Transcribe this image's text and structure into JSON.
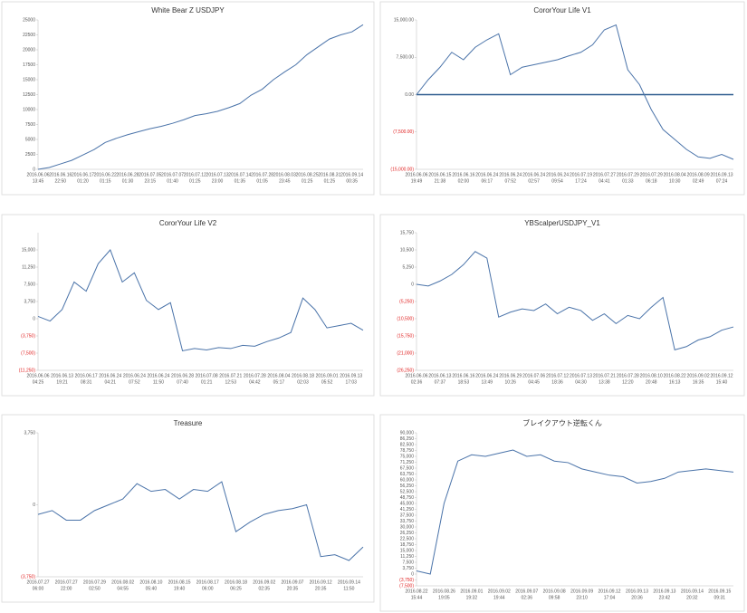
{
  "chart_data": [
    {
      "type": "line",
      "title": "White Bear Z USDJPY",
      "color": "#4a73a9",
      "categories": [
        "2016.06.06",
        null,
        "2016.06.16",
        null,
        "2016.06.17",
        null,
        "2016.06.22",
        null,
        "2016.06.28",
        null,
        "2016.07.05",
        null,
        "2016.07.07",
        null,
        "2016.07.12",
        null,
        "2016.07.13",
        null,
        "2016.07.14",
        null,
        "2016.07.28",
        null,
        "2016.08.03",
        null,
        "2016.08.25",
        null,
        "2016.08.31",
        null,
        "2016.09.14",
        null
      ],
      "times": [
        "13:45",
        null,
        "22:50",
        null,
        "01:20",
        null,
        "01:15",
        null,
        "01:30",
        null,
        "23:15",
        null,
        "01:40",
        null,
        "01:25",
        null,
        "23:00",
        null,
        "01:35",
        null,
        "01:05",
        null,
        "23:45",
        null,
        "01:25",
        null,
        "01:25",
        null,
        "00:35",
        null
      ],
      "values": [
        0,
        300,
        900,
        1500,
        2400,
        3300,
        4500,
        5200,
        5800,
        6300,
        6800,
        7200,
        7700,
        8300,
        9000,
        9300,
        9700,
        10300,
        11000,
        12400,
        13400,
        15000,
        16300,
        17500,
        19200,
        20500,
        21800,
        22500,
        23000,
        24200
      ],
      "ylim": [
        0,
        25000
      ],
      "yticks": [
        0,
        2500,
        5000,
        7500,
        10000,
        12500,
        15000,
        17500,
        20000,
        22500,
        25000
      ]
    },
    {
      "type": "line",
      "title": "CororYour Life V1",
      "color": "#4a73a9",
      "zero_line": true,
      "categories": [
        "2016.06.06",
        null,
        "2016.06.15",
        null,
        "2016.06.16",
        null,
        "2016.06.24",
        null,
        "2016.06.24",
        null,
        "2016.06.24",
        null,
        "2016.06.24",
        null,
        "2016.07.19",
        null,
        "2016.07.27",
        null,
        "2016.07.29",
        null,
        "2016.07.29",
        null,
        "2016.08.04",
        null,
        "2016.08.09",
        null,
        "2016.09.13",
        null
      ],
      "times": [
        "19:49",
        null,
        "21:38",
        null,
        "02:00",
        null,
        "06:17",
        null,
        "07:52",
        null,
        "02:57",
        null,
        "09:54",
        null,
        "17:24",
        null,
        "04:41",
        null,
        "01:33",
        null,
        "06:18",
        null,
        "10:30",
        null,
        "02:49",
        null,
        "07:24",
        null
      ],
      "values": [
        0,
        3000,
        5500,
        8500,
        7000,
        9500,
        11000,
        12213,
        4000,
        5500,
        6000,
        6500,
        7000,
        7800,
        8500,
        10000,
        13000,
        14000,
        5000,
        2000,
        -3000,
        -7000,
        -9000,
        -11000,
        -12500,
        -12800,
        -12000,
        -13000
      ],
      "ylim": [
        -15000,
        15000
      ],
      "yticks": [
        {
          "value": 15000,
          "label": "15,000.00"
        },
        {
          "value": 7500,
          "label": "7,500.00"
        },
        {
          "value": 0,
          "label": "0.00"
        },
        {
          "value": -7500,
          "label": "(7,500.00)"
        },
        {
          "value": -15000,
          "label": "(15,000.00)"
        }
      ]
    },
    {
      "type": "line",
      "title": "CororYour Life V2",
      "color": "#4a73a9",
      "categories": [
        "2016.06.06",
        null,
        "2016.06.13",
        null,
        "2016.06.17",
        null,
        "2016.06.24",
        null,
        "2016.06.24",
        null,
        "2016.06.24",
        null,
        "2016.06.28",
        null,
        "2016.07.08",
        null,
        "2016.07.21",
        null,
        "2016.07.28",
        null,
        "2016.08.04",
        null,
        "2016.08.18",
        null,
        "2016.09.01",
        null,
        "2016.09.13",
        null
      ],
      "times": [
        "04:25",
        null,
        "19:21",
        null,
        "08:31",
        null,
        "04:21",
        null,
        "07:52",
        null,
        "11:50",
        null,
        "07:40",
        null,
        "01:21",
        null,
        "12:53",
        null,
        "04:42",
        null,
        "05:17",
        null,
        "02:03",
        null,
        "05:52",
        null,
        "17:03",
        null
      ],
      "values": [
        500,
        -500,
        2000,
        8000,
        6000,
        12000,
        15000,
        8000,
        10000,
        4000,
        2000,
        3500,
        -7000,
        -6500,
        -6800,
        -6300,
        -6500,
        -5800,
        -6000,
        -5000,
        -4200,
        -3000,
        4500,
        2000,
        -2000,
        -1500,
        -1000,
        -2500
      ],
      "ylim": [
        -11250,
        18750
      ],
      "yticks": [
        {
          "value": 15000,
          "label": "15,000"
        },
        {
          "value": 11250,
          "label": "11,250"
        },
        {
          "value": 7500,
          "label": "7,500"
        },
        {
          "value": 3750,
          "label": "3,750"
        },
        0,
        {
          "value": -3750,
          "label": "(3,750)"
        },
        {
          "value": -7500,
          "label": "(7,500)"
        },
        {
          "value": -11250,
          "label": "(11,250)"
        }
      ]
    },
    {
      "type": "line",
      "title": "YBScalperUSDJPY_V1",
      "color": "#4a73a9",
      "categories": [
        "2016.06.06",
        null,
        "2016.06.13",
        null,
        "2016.06.16",
        null,
        "2016.06.24",
        null,
        "2016.06.29",
        null,
        "2016.07.06",
        null,
        "2016.07.12",
        null,
        "2016.07.13",
        null,
        "2016.07.21",
        null,
        "2016.07.28",
        null,
        "2016.08.10",
        null,
        "2016.08.22",
        null,
        "2016.09.02",
        null,
        "2016.09.12",
        null
      ],
      "times": [
        "02:36",
        null,
        "07:37",
        null,
        "18:53",
        null,
        "13:49",
        null,
        "10:26",
        null,
        "04:45",
        null,
        "18:36",
        null,
        "04:30",
        null,
        "13:38",
        null,
        "12:20",
        null,
        "20:48",
        null,
        "16:13",
        null,
        "16:35",
        null,
        "15:40",
        null
      ],
      "values": [
        0,
        -500,
        1000,
        3000,
        6000,
        10000,
        8000,
        -10000,
        -8500,
        -7500,
        -8000,
        -6000,
        -9000,
        -7000,
        -8000,
        -11000,
        -9000,
        -12000,
        -9500,
        -10500,
        -7000,
        -4000,
        -20000,
        -19000,
        -17000,
        -16000,
        -14000,
        -13000
      ],
      "ylim": [
        -26250,
        15750
      ],
      "yticks": [
        {
          "value": 15750,
          "label": "15,750"
        },
        {
          "value": 10500,
          "label": "10,500"
        },
        {
          "value": 5250,
          "label": "5,250"
        },
        0,
        {
          "value": -5250,
          "label": "(5,250)"
        },
        {
          "value": -10500,
          "label": "(10,500)"
        },
        {
          "value": -15750,
          "label": "(15,750)"
        },
        {
          "value": -21000,
          "label": "(21,000)"
        },
        {
          "value": -26250,
          "label": "(26,250)"
        }
      ]
    },
    {
      "type": "line",
      "title": "Treasure",
      "color": "#4a73a9",
      "categories": [
        "2016.07.27",
        null,
        "2016.07.27",
        null,
        "2016.07.29",
        null,
        "2016.08.02",
        null,
        "2016.08.10",
        null,
        "2016.08.15",
        null,
        "2016.08.17",
        null,
        "2016.08.18",
        null,
        "2016.09.02",
        null,
        "2016.09.07",
        null,
        "2016.09.12",
        null,
        "2016.09.14",
        null
      ],
      "times": [
        "06:00",
        null,
        "22:00",
        null,
        "02:50",
        null,
        "04:55",
        null,
        "05:40",
        null,
        "19:40",
        null,
        "06:00",
        null,
        "06:25",
        null,
        "02:35",
        null,
        "20:35",
        null,
        "20:35",
        null,
        "11:50",
        null
      ],
      "values": [
        -500,
        -300,
        -800,
        -800,
        -300,
        0,
        300,
        1100,
        700,
        800,
        300,
        800,
        700,
        1200,
        -1400,
        -900,
        -500,
        -300,
        -200,
        0,
        -2700,
        -2600,
        -2900,
        -2200
      ],
      "ylim": [
        -3750,
        3750
      ],
      "yticks": [
        {
          "value": 3750,
          "label": "3,750"
        },
        0,
        {
          "value": -3750,
          "label": "(3,750)"
        }
      ]
    },
    {
      "type": "line",
      "title": "ブレイクアウト逆転くん",
      "color": "#4a73a9",
      "categories": [
        "2016.08.22",
        null,
        "2016.08.26",
        null,
        "2016.09.01",
        null,
        "2016.09.02",
        null,
        "2016.09.07",
        null,
        "2016.09.08",
        null,
        "2016.09.09",
        null,
        "2016.09.12",
        null,
        "2016.09.13",
        null,
        "2016.09.13",
        null,
        "2016.09.14",
        null,
        "2016.09.15",
        null
      ],
      "times": [
        "15:44",
        null,
        "19:05",
        null,
        "19:32",
        null,
        "19:44",
        null,
        "02:36",
        null,
        "09:58",
        null,
        "23:10",
        null,
        "17:04",
        null,
        "20:36",
        null,
        "23:42",
        null,
        "20:32",
        null,
        "09:31",
        null
      ],
      "values": [
        2000,
        0,
        45000,
        72000,
        76000,
        75000,
        77000,
        79000,
        75000,
        76000,
        72000,
        71000,
        67000,
        65000,
        63000,
        62000,
        58000,
        59000,
        61000,
        65000,
        66000,
        67000,
        66000,
        65000
      ],
      "ylim": [
        -7500,
        90000
      ],
      "yticks": [
        {
          "value": 90000,
          "label": "90,000"
        },
        {
          "value": 86250,
          "label": "86,250"
        },
        {
          "value": 82500,
          "label": "82,500"
        },
        {
          "value": 78750,
          "label": "78,750"
        },
        {
          "value": 75000,
          "label": "75,000"
        },
        {
          "value": 71250,
          "label": "71,250"
        },
        {
          "value": 67500,
          "label": "67,500"
        },
        {
          "value": 63750,
          "label": "63,750"
        },
        {
          "value": 60000,
          "label": "60,000"
        },
        {
          "value": 56250,
          "label": "56,250"
        },
        {
          "value": 52500,
          "label": "52,500"
        },
        {
          "value": 48750,
          "label": "48,750"
        },
        {
          "value": 45000,
          "label": "45,000"
        },
        {
          "value": 41250,
          "label": "41,250"
        },
        {
          "value": 37500,
          "label": "37,500"
        },
        {
          "value": 33750,
          "label": "33,750"
        },
        {
          "value": 30000,
          "label": "30,000"
        },
        {
          "value": 26250,
          "label": "26,250"
        },
        {
          "value": 22500,
          "label": "22,500"
        },
        {
          "value": 18750,
          "label": "18,750"
        },
        {
          "value": 15000,
          "label": "15,000"
        },
        {
          "value": 11250,
          "label": "11,250"
        },
        {
          "value": 7500,
          "label": "7,500"
        },
        {
          "value": 3750,
          "label": "3,750"
        },
        0,
        {
          "value": -3750,
          "label": "(3,750)"
        },
        {
          "value": -7500,
          "label": "(7,500)"
        }
      ]
    }
  ]
}
